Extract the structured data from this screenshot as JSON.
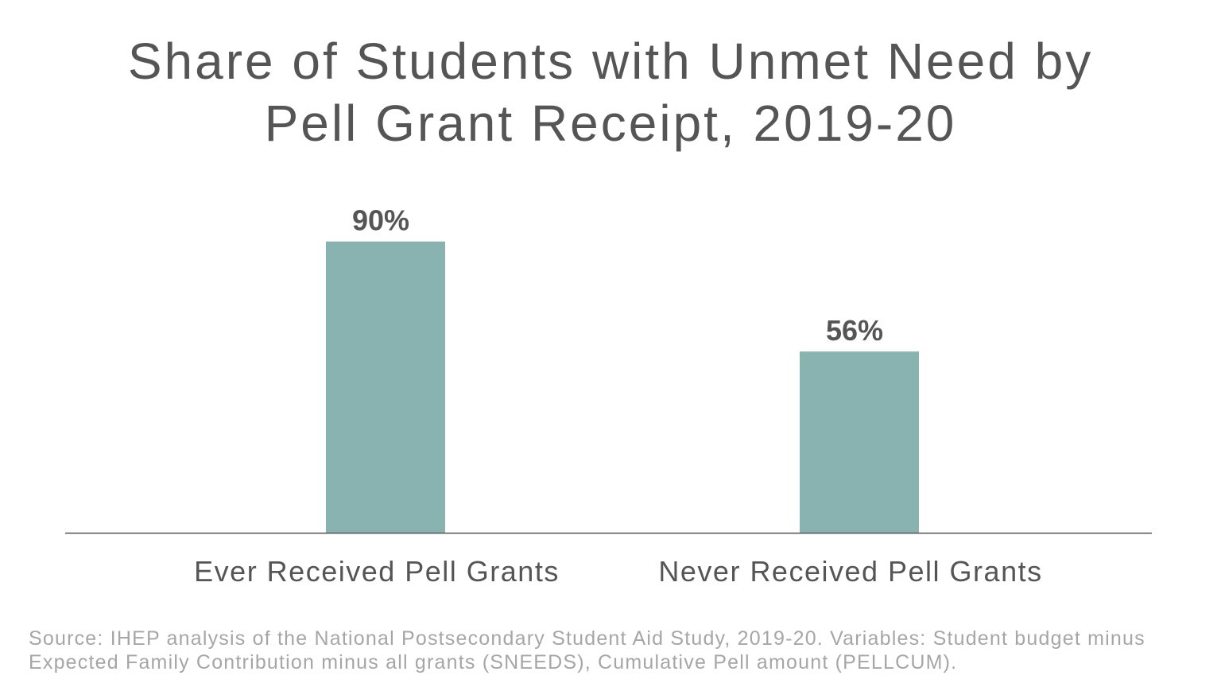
{
  "chart_data": {
    "type": "bar",
    "title": "Share of Students with Unmet Need by Pell Grant Receipt, 2019-20",
    "title_lines": [
      "Share of Students with Unmet Need by",
      "Pell Grant Receipt, 2019-20"
    ],
    "categories": [
      "Ever Received Pell Grants",
      "Never Received Pell Grants"
    ],
    "values": [
      90,
      56
    ],
    "data_labels": [
      "90%",
      "56%"
    ],
    "xlabel": "",
    "ylabel": "",
    "ylim": [
      0,
      100
    ],
    "grid": false,
    "legend": "none",
    "bar_color": "#88b3b0",
    "axis_color": "#555555"
  },
  "source": "Source: IHEP analysis of the National Postsecondary Student Aid Study, 2019-20. Variables: Student budget minus Expected Family Contribution minus all grants (SNEEDS), Cumulative Pell amount (PELLCUM)."
}
